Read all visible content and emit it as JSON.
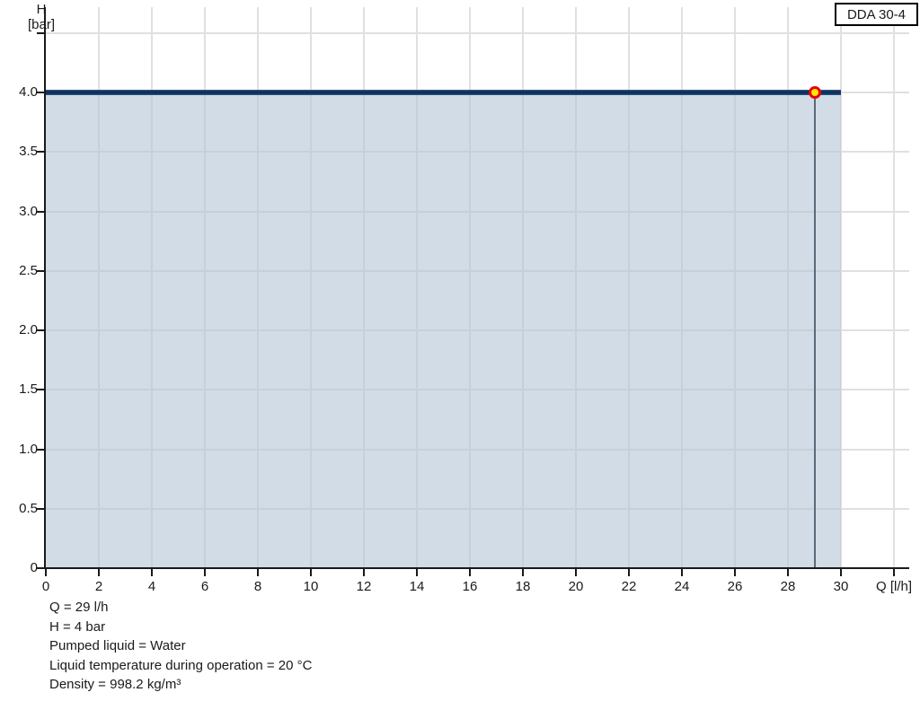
{
  "header": {
    "pump_model": "DDA 30-4"
  },
  "chart_data": {
    "type": "area",
    "title": "DDA 30-4",
    "xlabel": "Q [l/h]",
    "ylabel": "H [bar]",
    "x_axis": {
      "min": 0,
      "max": 32.5,
      "tick_step": 2,
      "ticks": [
        0,
        2,
        4,
        6,
        8,
        10,
        12,
        14,
        16,
        18,
        20,
        22,
        24,
        26,
        28,
        30
      ],
      "tick_labels": [
        "0",
        "2",
        "4",
        "6",
        "8",
        "10",
        "12",
        "14",
        "16",
        "18",
        "20",
        "22",
        "24",
        "26",
        "28",
        "30"
      ],
      "unit_label": "Q [l/h]",
      "unit_label_position": 32
    },
    "y_axis": {
      "min": 0,
      "max": 4.7,
      "tick_step": 0.5,
      "ticks": [
        0,
        0.5,
        1,
        1.5,
        2,
        2.5,
        3,
        3.5,
        4
      ],
      "tick_labels": [
        "0",
        "0.5",
        "1.0",
        "1.5",
        "2.0",
        "2.5",
        "3.0",
        "3.5",
        "4.0"
      ],
      "unlabeled_ticks": [
        4.5
      ],
      "label_line1": "H",
      "label_line2": "[bar]"
    },
    "grid": true,
    "series": [
      {
        "name": "pump-curve",
        "shape": "horizontal-line",
        "h": 4.0,
        "q_start": 0,
        "q_end": 30
      }
    ],
    "operating_point": {
      "q": 29,
      "h": 4.0
    },
    "colors": {
      "curve": "#132f55",
      "curve_edge": "#2e6196",
      "fill": "rgba(180,198,217,0.62)",
      "grid": "#e0e0e0",
      "axis": "#1a1a1a",
      "drop_line": "#5a6b7a",
      "marker_fill": "#ffe600",
      "marker_ring": "#e8000f"
    }
  },
  "info_panel": {
    "lines": [
      "Q = 29 l/h",
      "H = 4 bar",
      "Pumped liquid = Water",
      "Liquid temperature during operation = 20 °C",
      "Density = 998.2 kg/m³"
    ]
  }
}
